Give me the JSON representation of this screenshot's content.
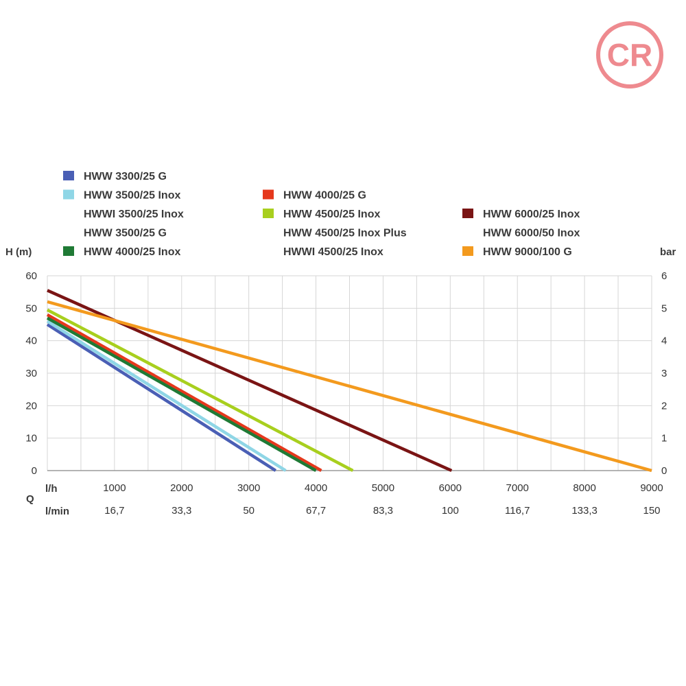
{
  "logo": {
    "letters": "CR",
    "color": "#ee8a8f"
  },
  "chart_data": {
    "type": "line",
    "xlabel": "l/h",
    "x2label": "l/min",
    "qlabel": "Q",
    "ylabel": "H (m)",
    "y2label": "bar",
    "xlim": [
      0,
      9000
    ],
    "ylim": [
      0,
      60
    ],
    "y2lim": [
      0,
      6
    ],
    "grid": true,
    "x_ticks": [
      "1000",
      "2000",
      "3000",
      "4000",
      "5000",
      "6000",
      "7000",
      "8000",
      "9000"
    ],
    "x2_ticks": [
      "16,7",
      "33,3",
      "50",
      "67,7",
      "83,3",
      "100",
      "116,7",
      "133,3",
      "150"
    ],
    "y_ticks": [
      "0",
      "10",
      "20",
      "30",
      "40",
      "50",
      "60"
    ],
    "y2_ticks": [
      "0",
      "1",
      "2",
      "3",
      "4",
      "5",
      "6"
    ],
    "legend": [
      {
        "color": "#4a5fb5",
        "names": [
          "HWW 3300/25 G"
        ]
      },
      {
        "color": "#8fd6e6",
        "names": [
          "HWW 3500/25 Inox",
          "HWWI 3500/25 Inox",
          "HWW 3500/25 G"
        ]
      },
      {
        "color": "#1f7a35",
        "names": [
          "HWW 4000/25 Inox"
        ]
      },
      {
        "color": "#e5381c",
        "names": [
          "HWW 4000/25 G"
        ]
      },
      {
        "color": "#a8cf1e",
        "names": [
          "HWW 4500/25 Inox",
          "HWW 4500/25 Inox Plus",
          "HWWI 4500/25 Inox"
        ]
      },
      {
        "color": "#7a1414",
        "names": [
          "HWW 6000/25 Inox",
          "HWW 6000/50 Inox"
        ]
      },
      {
        "color": "#f39a1e",
        "names": [
          "HWW 9000/100 G"
        ]
      }
    ],
    "series": [
      {
        "color": "#4a5fb5",
        "x": [
          0,
          3400
        ],
        "y": [
          45,
          0
        ]
      },
      {
        "color": "#8fd6e6",
        "x": [
          0,
          3550
        ],
        "y": [
          46,
          0
        ]
      },
      {
        "color": "#e5381c",
        "x": [
          0,
          4080
        ],
        "y": [
          48,
          0
        ]
      },
      {
        "color": "#1f7a35",
        "x": [
          0,
          4000
        ],
        "y": [
          47,
          0
        ]
      },
      {
        "color": "#a8cf1e",
        "x": [
          0,
          4550
        ],
        "y": [
          49.5,
          0
        ]
      },
      {
        "color": "#7a1414",
        "x": [
          0,
          6020
        ],
        "y": [
          55.5,
          0
        ]
      },
      {
        "color": "#f39a1e",
        "x": [
          0,
          9000
        ],
        "y": [
          52,
          0
        ]
      }
    ]
  }
}
